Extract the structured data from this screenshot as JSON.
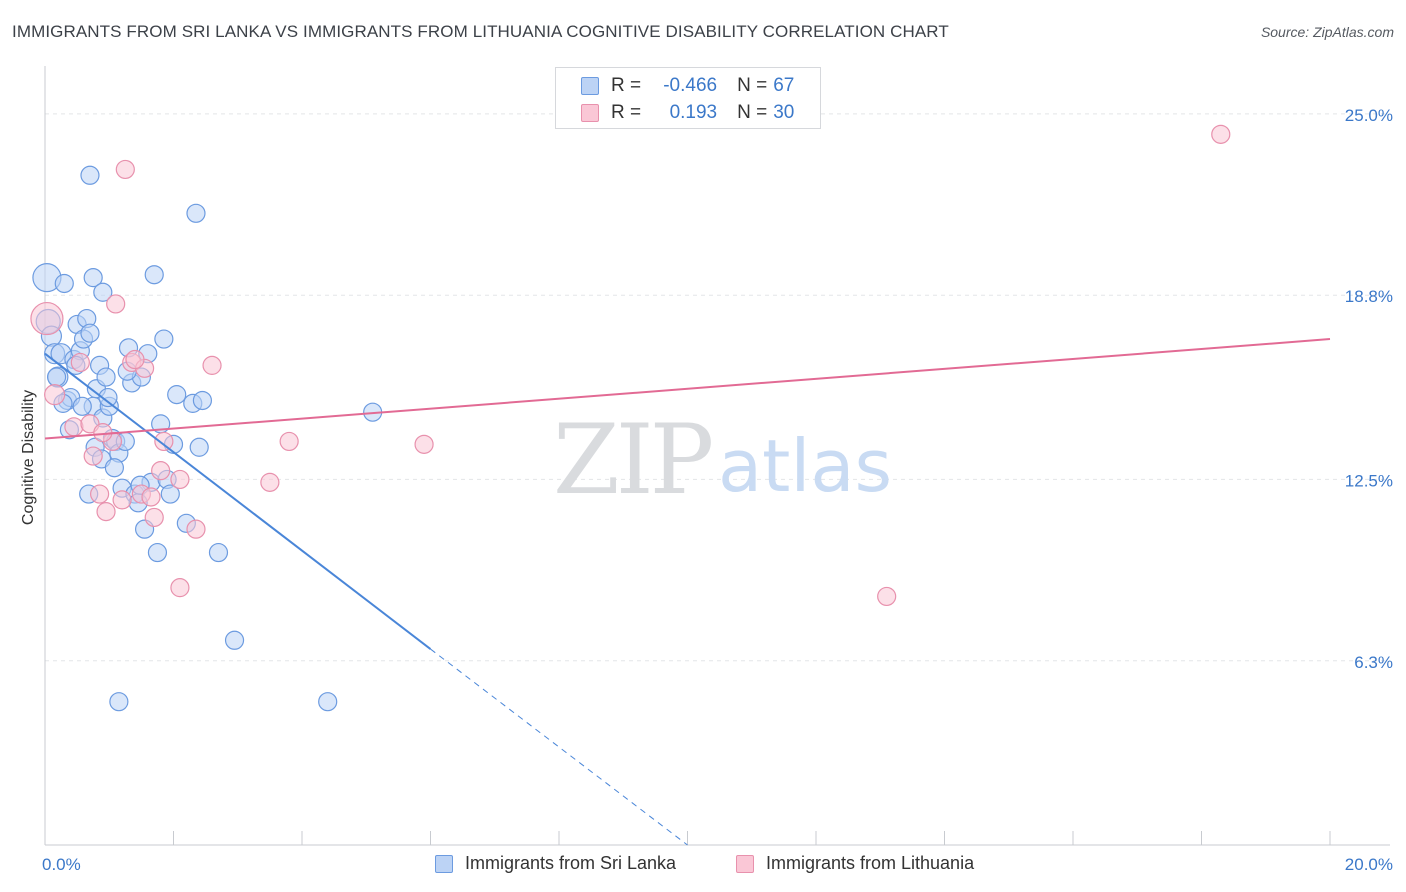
{
  "title": "IMMIGRANTS FROM SRI LANKA VS IMMIGRANTS FROM LITHUANIA COGNITIVE DISABILITY CORRELATION CHART",
  "source": "Source: ZipAtlas.com",
  "watermark": {
    "zip": "ZIP",
    "atlas": "atlas"
  },
  "legend_top": [
    {
      "r_label": "R =",
      "r_value": "-0.466",
      "n_label": "N =",
      "n_value": "67",
      "color": "#6c9be0"
    },
    {
      "r_label": "R =",
      "r_value": "0.193",
      "n_label": "N =",
      "n_value": "30",
      "color": "#e891ad"
    }
  ],
  "colors": {
    "blue": "#4a86d8",
    "pink": "#e26a94",
    "blue_fill": "#bcd3f5",
    "pink_fill": "#fac7d6",
    "grid": "#e3e5e8",
    "tick_label": "#3b78c9"
  },
  "chart_data": {
    "type": "scatter",
    "title": "IMMIGRANTS FROM SRI LANKA VS IMMIGRANTS FROM LITHUANIA COGNITIVE DISABILITY CORRELATION CHART",
    "xlabel": "",
    "ylabel": "Cognitive Disability",
    "xlim": [
      0,
      20
    ],
    "ylim": [
      0,
      26.5
    ],
    "x_tick_labels": [
      {
        "value": 0,
        "label": "0.0%"
      },
      {
        "value": 20,
        "label": "20.0%"
      }
    ],
    "y_tick_labels": [
      {
        "value": 6.3,
        "label": "6.3%"
      },
      {
        "value": 12.5,
        "label": "12.5%"
      },
      {
        "value": 18.8,
        "label": "18.8%"
      },
      {
        "value": 25.0,
        "label": "25.0%"
      }
    ],
    "grid": true,
    "legend": "top-center",
    "series": [
      {
        "name": "Immigrants from Sri Lanka",
        "color": "#4a86d8",
        "trend": {
          "x": [
            0,
            6.0
          ],
          "y": [
            16.8,
            6.7
          ],
          "extended_to": [
            10.0,
            0.0
          ]
        },
        "points": [
          [
            0.03,
            19.4,
            14
          ],
          [
            0.05,
            17.9,
            12
          ],
          [
            0.1,
            17.4,
            10
          ],
          [
            0.15,
            16.8,
            10
          ],
          [
            0.2,
            16.0,
            10
          ],
          [
            0.25,
            16.8,
            10
          ],
          [
            0.3,
            19.2,
            9
          ],
          [
            0.35,
            15.2,
            9
          ],
          [
            0.4,
            15.3,
            9
          ],
          [
            0.45,
            16.6,
            9
          ],
          [
            0.5,
            17.8,
            9
          ],
          [
            0.55,
            16.9,
            9
          ],
          [
            0.6,
            17.3,
            9
          ],
          [
            0.65,
            18.0,
            9
          ],
          [
            0.7,
            17.5,
            9
          ],
          [
            0.75,
            15.0,
            9
          ],
          [
            0.8,
            15.6,
            9
          ],
          [
            0.85,
            16.4,
            9
          ],
          [
            0.9,
            14.6,
            9
          ],
          [
            0.95,
            16.0,
            9
          ],
          [
            1.0,
            15.0,
            9
          ],
          [
            1.05,
            13.9,
            9
          ],
          [
            1.1,
            13.8,
            9
          ],
          [
            1.15,
            13.4,
            9
          ],
          [
            1.2,
            12.2,
            9
          ],
          [
            1.25,
            13.8,
            9
          ],
          [
            1.3,
            17.0,
            9
          ],
          [
            1.35,
            15.8,
            9
          ],
          [
            1.4,
            12.0,
            9
          ],
          [
            1.45,
            11.7,
            9
          ],
          [
            1.5,
            16.0,
            9
          ],
          [
            1.55,
            10.8,
            9
          ],
          [
            1.6,
            16.8,
            9
          ],
          [
            1.65,
            12.4,
            9
          ],
          [
            1.7,
            19.5,
            9
          ],
          [
            1.75,
            10.0,
            9
          ],
          [
            1.8,
            14.4,
            9
          ],
          [
            1.85,
            17.3,
            9
          ],
          [
            1.9,
            12.5,
            9
          ],
          [
            1.95,
            12.0,
            9
          ],
          [
            2.0,
            13.7,
            9
          ],
          [
            2.05,
            15.4,
            9
          ],
          [
            2.2,
            11.0,
            9
          ],
          [
            2.3,
            15.1,
            9
          ],
          [
            2.4,
            13.6,
            9
          ],
          [
            2.35,
            21.6,
            9
          ],
          [
            2.45,
            15.2,
            9
          ],
          [
            2.7,
            10.0,
            9
          ],
          [
            2.95,
            7.0,
            9
          ],
          [
            0.7,
            22.9,
            9
          ],
          [
            0.75,
            19.4,
            9
          ],
          [
            0.9,
            18.9,
            9
          ],
          [
            1.15,
            4.9,
            9
          ],
          [
            4.4,
            4.9,
            9
          ],
          [
            5.1,
            14.8,
            9
          ],
          [
            0.18,
            16.0,
            9
          ],
          [
            0.28,
            15.1,
            9
          ],
          [
            0.38,
            14.2,
            9
          ],
          [
            0.48,
            16.4,
            9
          ],
          [
            0.58,
            15.0,
            9
          ],
          [
            0.68,
            12.0,
            9
          ],
          [
            0.78,
            13.6,
            9
          ],
          [
            0.88,
            13.2,
            9
          ],
          [
            0.98,
            15.3,
            9
          ],
          [
            1.08,
            12.9,
            9
          ],
          [
            1.28,
            16.2,
            9
          ],
          [
            1.48,
            12.3,
            9
          ]
        ]
      },
      {
        "name": "Immigrants from Lithuania",
        "color": "#e26a94",
        "trend": {
          "x": [
            0,
            20.0
          ],
          "y": [
            13.9,
            17.3
          ]
        },
        "points": [
          [
            0.03,
            18.0,
            16
          ],
          [
            0.15,
            15.4,
            10
          ],
          [
            0.45,
            14.3,
            9
          ],
          [
            0.55,
            16.5,
            9
          ],
          [
            0.7,
            14.4,
            9
          ],
          [
            0.75,
            13.3,
            9
          ],
          [
            0.85,
            12.0,
            9
          ],
          [
            0.95,
            11.4,
            9
          ],
          [
            1.05,
            13.8,
            9
          ],
          [
            1.1,
            18.5,
            9
          ],
          [
            1.2,
            11.8,
            9
          ],
          [
            1.25,
            23.1,
            9
          ],
          [
            1.35,
            16.5,
            9
          ],
          [
            1.5,
            12.0,
            9
          ],
          [
            1.55,
            16.3,
            9
          ],
          [
            1.65,
            11.9,
            9
          ],
          [
            1.7,
            11.2,
            9
          ],
          [
            1.8,
            12.8,
            9
          ],
          [
            1.85,
            13.8,
            9
          ],
          [
            2.1,
            8.8,
            9
          ],
          [
            2.1,
            12.5,
            9
          ],
          [
            2.35,
            10.8,
            9
          ],
          [
            2.6,
            16.4,
            9
          ],
          [
            3.5,
            12.4,
            9
          ],
          [
            3.8,
            13.8,
            9
          ],
          [
            5.9,
            13.7,
            9
          ],
          [
            13.1,
            8.5,
            9
          ],
          [
            18.3,
            24.3,
            9
          ],
          [
            1.4,
            16.6,
            9
          ],
          [
            0.9,
            14.1,
            9
          ]
        ]
      }
    ]
  },
  "legend_bottom": [
    {
      "label": "Immigrants from Sri Lanka"
    },
    {
      "label": "Immigrants from Lithuania"
    }
  ]
}
